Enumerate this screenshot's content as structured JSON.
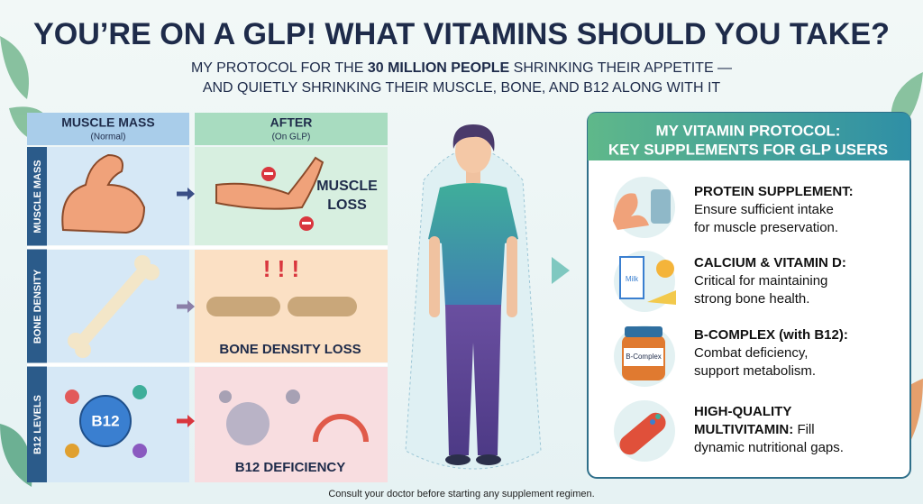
{
  "header": {
    "title": "YOU’RE ON A GLP! WHAT VITAMINS SHOULD YOU TAKE?",
    "subtitle": {
      "before": "MY PROTOCOL FOR THE",
      "highlight": "30 MILLION PEOPLE",
      "after": "SHRINKING THEIR APPETITE —",
      "line2": "AND QUIETLY SHRINKING THEIR MUSCLE, BONE, AND B12 ALONG WITH IT"
    }
  },
  "comparison": {
    "columns": [
      {
        "title": "MUSCLE MASS",
        "note": "(Normal)"
      },
      {
        "title": "AFTER",
        "note": "(On GLP)"
      }
    ],
    "rows": [
      {
        "label": "MUSCLE MASS",
        "after": [
          "MUSCLE",
          "LOSS"
        ]
      },
      {
        "label": "BONE DENSITY",
        "after": [
          "BONE DENSITY LOSS"
        ]
      },
      {
        "label": "B12 LEVELS",
        "badge": "B12",
        "after": [
          "B12 DEFICIENCY"
        ]
      }
    ]
  },
  "protocol": {
    "title": [
      "MY VITAMIN PROTOCOL:",
      "KEY SUPPLEMENTS FOR GLP USERS"
    ],
    "items": [
      {
        "title": [
          "PROTEIN SUPPLEMENT:"
        ],
        "text": [
          "Ensure sufficient intake",
          "for muscle preservation."
        ]
      },
      {
        "title": [
          "CALCIUM & VITAMIN D:"
        ],
        "text": [
          "Critical for maintaining",
          "strong bone health."
        ],
        "icon_label": "Milk"
      },
      {
        "title": [
          "B-COMPLEX (with B12):"
        ],
        "text": [
          "Combat deficiency,",
          "support metabolism."
        ],
        "icon_label": "B-Complex"
      },
      {
        "title": [
          "HIGH-QUALITY",
          "MULTIVITAMIN:"
        ],
        "text": [
          "Fill",
          "dynamic nutritional gaps."
        ]
      }
    ]
  },
  "footer": "Consult your doctor before starting any supplement regimen."
}
